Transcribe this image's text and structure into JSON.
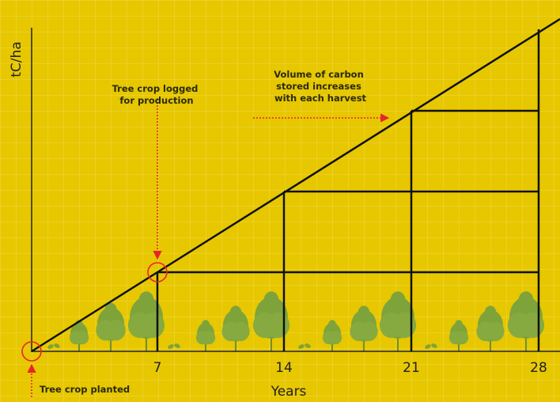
{
  "axes": {
    "y_label": "tC/ha",
    "x_label": "Years",
    "x_ticks": [
      "7",
      "14",
      "21",
      "28"
    ]
  },
  "annotations": {
    "logged": [
      "Tree crop logged",
      "for production"
    ],
    "volume": [
      "Volume of carbon",
      "stored increases",
      "with each harvest"
    ],
    "planted": "Tree crop planted"
  }
}
